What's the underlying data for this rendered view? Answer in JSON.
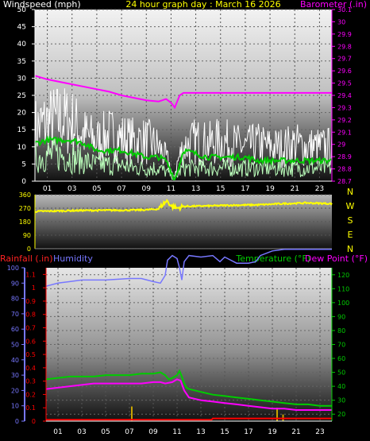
{
  "header": {
    "left_label": "Windspeed (mph)",
    "center_label": "24 hour graph day : March 16 2026",
    "right_label": "Barometer (.in)"
  },
  "colors": {
    "white": "#ffffff",
    "yellow": "#ffff00",
    "magenta": "#ff00ff",
    "green": "#00cc00",
    "red": "#ff0000",
    "blue": "#7777ff",
    "gust": "#ffffff",
    "wind_avg": "#bbffbb"
  },
  "chart_data": [
    {
      "type": "line",
      "name": "wind-barometer",
      "x_tick_labels": [
        "01",
        "03",
        "05",
        "07",
        "09",
        "11",
        "13",
        "15",
        "17",
        "19",
        "21",
        "23"
      ],
      "x_range": [
        0,
        24
      ],
      "left_axis": {
        "label": "Windspeed (mph)",
        "ylim": [
          0,
          50
        ],
        "ticks": [
          "0",
          "5",
          "10",
          "15",
          "20",
          "25",
          "30",
          "35",
          "40",
          "45",
          "50"
        ]
      },
      "right_axis": {
        "label": "Barometer (.in)",
        "ylim": [
          28.7,
          30.1
        ],
        "ticks": [
          "28.7",
          "28.8",
          "28.9",
          "29",
          "29.1",
          "29.2",
          "29.3",
          "29.4",
          "29.5",
          "29.6",
          "29.7",
          "29.8",
          "29.9",
          "30",
          "30.1"
        ]
      },
      "series": [
        {
          "key": "barometer",
          "axis": "right",
          "points": [
            [
              0,
              29.56
            ],
            [
              1,
              29.53
            ],
            [
              2,
              29.51
            ],
            [
              3,
              29.49
            ],
            [
              4,
              29.47
            ],
            [
              5,
              29.45
            ],
            [
              6,
              29.43
            ],
            [
              7,
              29.4
            ],
            [
              8,
              29.38
            ],
            [
              9,
              29.36
            ],
            [
              10,
              29.35
            ],
            [
              10.6,
              29.37
            ],
            [
              11,
              29.34
            ],
            [
              11.3,
              29.3
            ],
            [
              11.7,
              29.4
            ],
            [
              12,
              29.42
            ],
            [
              13,
              29.42
            ],
            [
              14,
              29.42
            ],
            [
              15,
              29.42
            ],
            [
              16,
              29.42
            ],
            [
              17,
              29.42
            ],
            [
              18,
              29.42
            ],
            [
              19,
              29.42
            ],
            [
              20,
              29.42
            ],
            [
              21,
              29.42
            ],
            [
              22,
              29.42
            ],
            [
              23,
              29.42
            ],
            [
              24,
              29.42
            ]
          ]
        },
        {
          "key": "wind_gust",
          "axis": "left",
          "style": "noisy",
          "points": [
            [
              0,
              17
            ],
            [
              1,
              19
            ],
            [
              2,
              20
            ],
            [
              3,
              19
            ],
            [
              4,
              15
            ],
            [
              5,
              13
            ],
            [
              6,
              15
            ],
            [
              7,
              14
            ],
            [
              8,
              13
            ],
            [
              9,
              13
            ],
            [
              10,
              11
            ],
            [
              10.8,
              6
            ],
            [
              11.2,
              1
            ],
            [
              11.6,
              7
            ],
            [
              12,
              11
            ],
            [
              13,
              13
            ],
            [
              14,
              12
            ],
            [
              15,
              13
            ],
            [
              16,
              12
            ],
            [
              17,
              11
            ],
            [
              18,
              12
            ],
            [
              19,
              11
            ],
            [
              20,
              11
            ],
            [
              21,
              12
            ],
            [
              22,
              11
            ],
            [
              23,
              11
            ],
            [
              24,
              11
            ]
          ]
        },
        {
          "key": "wind_avg",
          "axis": "left",
          "style": "noisy",
          "points": [
            [
              0,
              7
            ],
            [
              1,
              8
            ],
            [
              2,
              8
            ],
            [
              3,
              7
            ],
            [
              4,
              6
            ],
            [
              5,
              5
            ],
            [
              6,
              5
            ],
            [
              7,
              5
            ],
            [
              8,
              4
            ],
            [
              9,
              4
            ],
            [
              10,
              4
            ],
            [
              11,
              2
            ],
            [
              11.3,
              0.5
            ],
            [
              11.7,
              3
            ],
            [
              12,
              4
            ],
            [
              13,
              4
            ],
            [
              14,
              4
            ],
            [
              15,
              4
            ],
            [
              16,
              4
            ],
            [
              17,
              4
            ],
            [
              18,
              4
            ],
            [
              19,
              4
            ],
            [
              20,
              4
            ],
            [
              21,
              4
            ],
            [
              22,
              4
            ],
            [
              23,
              4
            ],
            [
              24,
              4
            ]
          ]
        },
        {
          "key": "wind_10min",
          "axis": "left",
          "points": [
            [
              0,
              11
            ],
            [
              1,
              12
            ],
            [
              2,
              12
            ],
            [
              3,
              12
            ],
            [
              4,
              11
            ],
            [
              5,
              9
            ],
            [
              6,
              9
            ],
            [
              7,
              9
            ],
            [
              8,
              8
            ],
            [
              9,
              7
            ],
            [
              10,
              7
            ],
            [
              10.6,
              6
            ],
            [
              11,
              3
            ],
            [
              11.3,
              0.5
            ],
            [
              11.7,
              5
            ],
            [
              12,
              9
            ],
            [
              13,
              8
            ],
            [
              14,
              7
            ],
            [
              15,
              7
            ],
            [
              16,
              7
            ],
            [
              17,
              7
            ],
            [
              18,
              6
            ],
            [
              19,
              6
            ],
            [
              20,
              6
            ],
            [
              21,
              6
            ],
            [
              22,
              6
            ],
            [
              23,
              6
            ],
            [
              24,
              6
            ]
          ]
        }
      ]
    },
    {
      "type": "line",
      "name": "wind-direction",
      "x_range": [
        0,
        24
      ],
      "left_axis": {
        "ylim": [
          0,
          360
        ],
        "ticks": [
          "0",
          "90",
          "180",
          "270",
          "360"
        ]
      },
      "right_labels": [
        "N",
        "W",
        "S",
        "E",
        "N"
      ],
      "series": [
        {
          "key": "direction",
          "style": "noisy",
          "points": [
            [
              0,
              248
            ],
            [
              2,
              252
            ],
            [
              4,
              255
            ],
            [
              6,
              256
            ],
            [
              8,
              257
            ],
            [
              9,
              259
            ],
            [
              10,
              265
            ],
            [
              10.4,
              300
            ],
            [
              10.7,
              320
            ],
            [
              11,
              285
            ],
            [
              11.5,
              270
            ],
            [
              12,
              282
            ],
            [
              14,
              285
            ],
            [
              16,
              290
            ],
            [
              18,
              292
            ],
            [
              20,
              300
            ],
            [
              22,
              305
            ],
            [
              24,
              300
            ]
          ]
        }
      ]
    },
    {
      "type": "line",
      "name": "rain-humidity-temperature",
      "x_tick_labels": [
        "01",
        "03",
        "05",
        "07",
        "09",
        "11",
        "13",
        "15",
        "17",
        "19",
        "21",
        "23"
      ],
      "x_range": [
        0,
        24
      ],
      "titles": {
        "rain": "Rainfall (.in)",
        "humidity": "Humidity",
        "temperature": "Temperature (°F)",
        "dew": "Dew Point (°F)"
      },
      "humidity_axis": {
        "ylim": [
          0,
          100
        ],
        "ticks": [
          "0",
          "10",
          "20",
          "30",
          "40",
          "50",
          "60",
          "70",
          "80",
          "90",
          "100"
        ]
      },
      "rain_axis": {
        "ylim": [
          0,
          1.15
        ],
        "ticks": [
          "0",
          "0.1",
          "0.2",
          "0.3",
          "0.4",
          "0.5",
          "0.6",
          "0.7",
          "0.8",
          "0.9",
          "1",
          "1.1"
        ]
      },
      "temperature_axis": {
        "ylim": [
          15,
          125
        ],
        "ticks": [
          "20",
          "30",
          "40",
          "50",
          "60",
          "70",
          "80",
          "90",
          "100",
          "110",
          "120"
        ]
      },
      "series": [
        {
          "key": "humidity",
          "axis": "humidity",
          "points": [
            [
              0,
              88
            ],
            [
              1,
              90
            ],
            [
              2,
              91
            ],
            [
              3,
              92
            ],
            [
              5,
              92
            ],
            [
              7,
              93
            ],
            [
              8,
              93
            ],
            [
              9,
              91
            ],
            [
              9.6,
              90
            ],
            [
              10,
              95
            ],
            [
              10.2,
              105
            ],
            [
              10.6,
              108
            ],
            [
              11,
              106
            ],
            [
              11.2,
              100
            ],
            [
              11.4,
              92
            ],
            [
              11.6,
              104
            ],
            [
              12,
              108
            ],
            [
              13,
              107
            ],
            [
              14,
              108
            ],
            [
              14.6,
              104
            ],
            [
              15,
              107
            ],
            [
              16,
              103
            ],
            [
              16.6,
              103
            ],
            [
              17,
              103
            ],
            [
              17.6,
              104
            ],
            [
              18,
              108
            ],
            [
              19,
              111
            ],
            [
              20,
              112
            ],
            [
              21,
              112
            ],
            [
              22,
              112
            ],
            [
              23,
              112
            ],
            [
              24,
              112
            ]
          ]
        },
        {
          "key": "temperature",
          "axis": "temperature",
          "points": [
            [
              0,
              45
            ],
            [
              1,
              46
            ],
            [
              2,
              47
            ],
            [
              3,
              47
            ],
            [
              4,
              47
            ],
            [
              5,
              48
            ],
            [
              6,
              48
            ],
            [
              7,
              48
            ],
            [
              8,
              49
            ],
            [
              9,
              49
            ],
            [
              9.6,
              50
            ],
            [
              10,
              48
            ],
            [
              10.3,
              45
            ],
            [
              10.6,
              46
            ],
            [
              11,
              48
            ],
            [
              11.2,
              51
            ],
            [
              11.4,
              47
            ],
            [
              11.6,
              42
            ],
            [
              11.8,
              39
            ],
            [
              12,
              38
            ],
            [
              13,
              36
            ],
            [
              14,
              34
            ],
            [
              15,
              33
            ],
            [
              16,
              32
            ],
            [
              17,
              31
            ],
            [
              18,
              30
            ],
            [
              19,
              29
            ],
            [
              20,
              28
            ],
            [
              21,
              27
            ],
            [
              22,
              27
            ],
            [
              23,
              26
            ],
            [
              24,
              26
            ]
          ]
        },
        {
          "key": "dew_point",
          "axis": "temperature",
          "points": [
            [
              0,
              38
            ],
            [
              1,
              39
            ],
            [
              2,
              40
            ],
            [
              3,
              41
            ],
            [
              4,
              42
            ],
            [
              5,
              42
            ],
            [
              6,
              42
            ],
            [
              7,
              42
            ],
            [
              8,
              42
            ],
            [
              9,
              43
            ],
            [
              9.6,
              43
            ],
            [
              10,
              42
            ],
            [
              10.6,
              43
            ],
            [
              11,
              45
            ],
            [
              11.3,
              44
            ],
            [
              11.6,
              37
            ],
            [
              12,
              32
            ],
            [
              13,
              30
            ],
            [
              14,
              29
            ],
            [
              15,
              28
            ],
            [
              16,
              27
            ],
            [
              17,
              26
            ],
            [
              18,
              25
            ],
            [
              19,
              24
            ],
            [
              20,
              24
            ],
            [
              21,
              23
            ],
            [
              22,
              23
            ],
            [
              23,
              23
            ],
            [
              24,
              23
            ]
          ]
        },
        {
          "key": "rain_total",
          "axis": "rain",
          "points": [
            [
              0,
              0.01
            ],
            [
              13.9,
              0.01
            ],
            [
              14,
              0.02
            ],
            [
              24,
              0.02
            ]
          ]
        },
        {
          "key": "rain_bars",
          "axis": "rain",
          "style": "bars",
          "points": [
            [
              7.2,
              0.11
            ],
            [
              19.4,
              0.1
            ],
            [
              19.9,
              0.05
            ]
          ]
        }
      ]
    }
  ]
}
